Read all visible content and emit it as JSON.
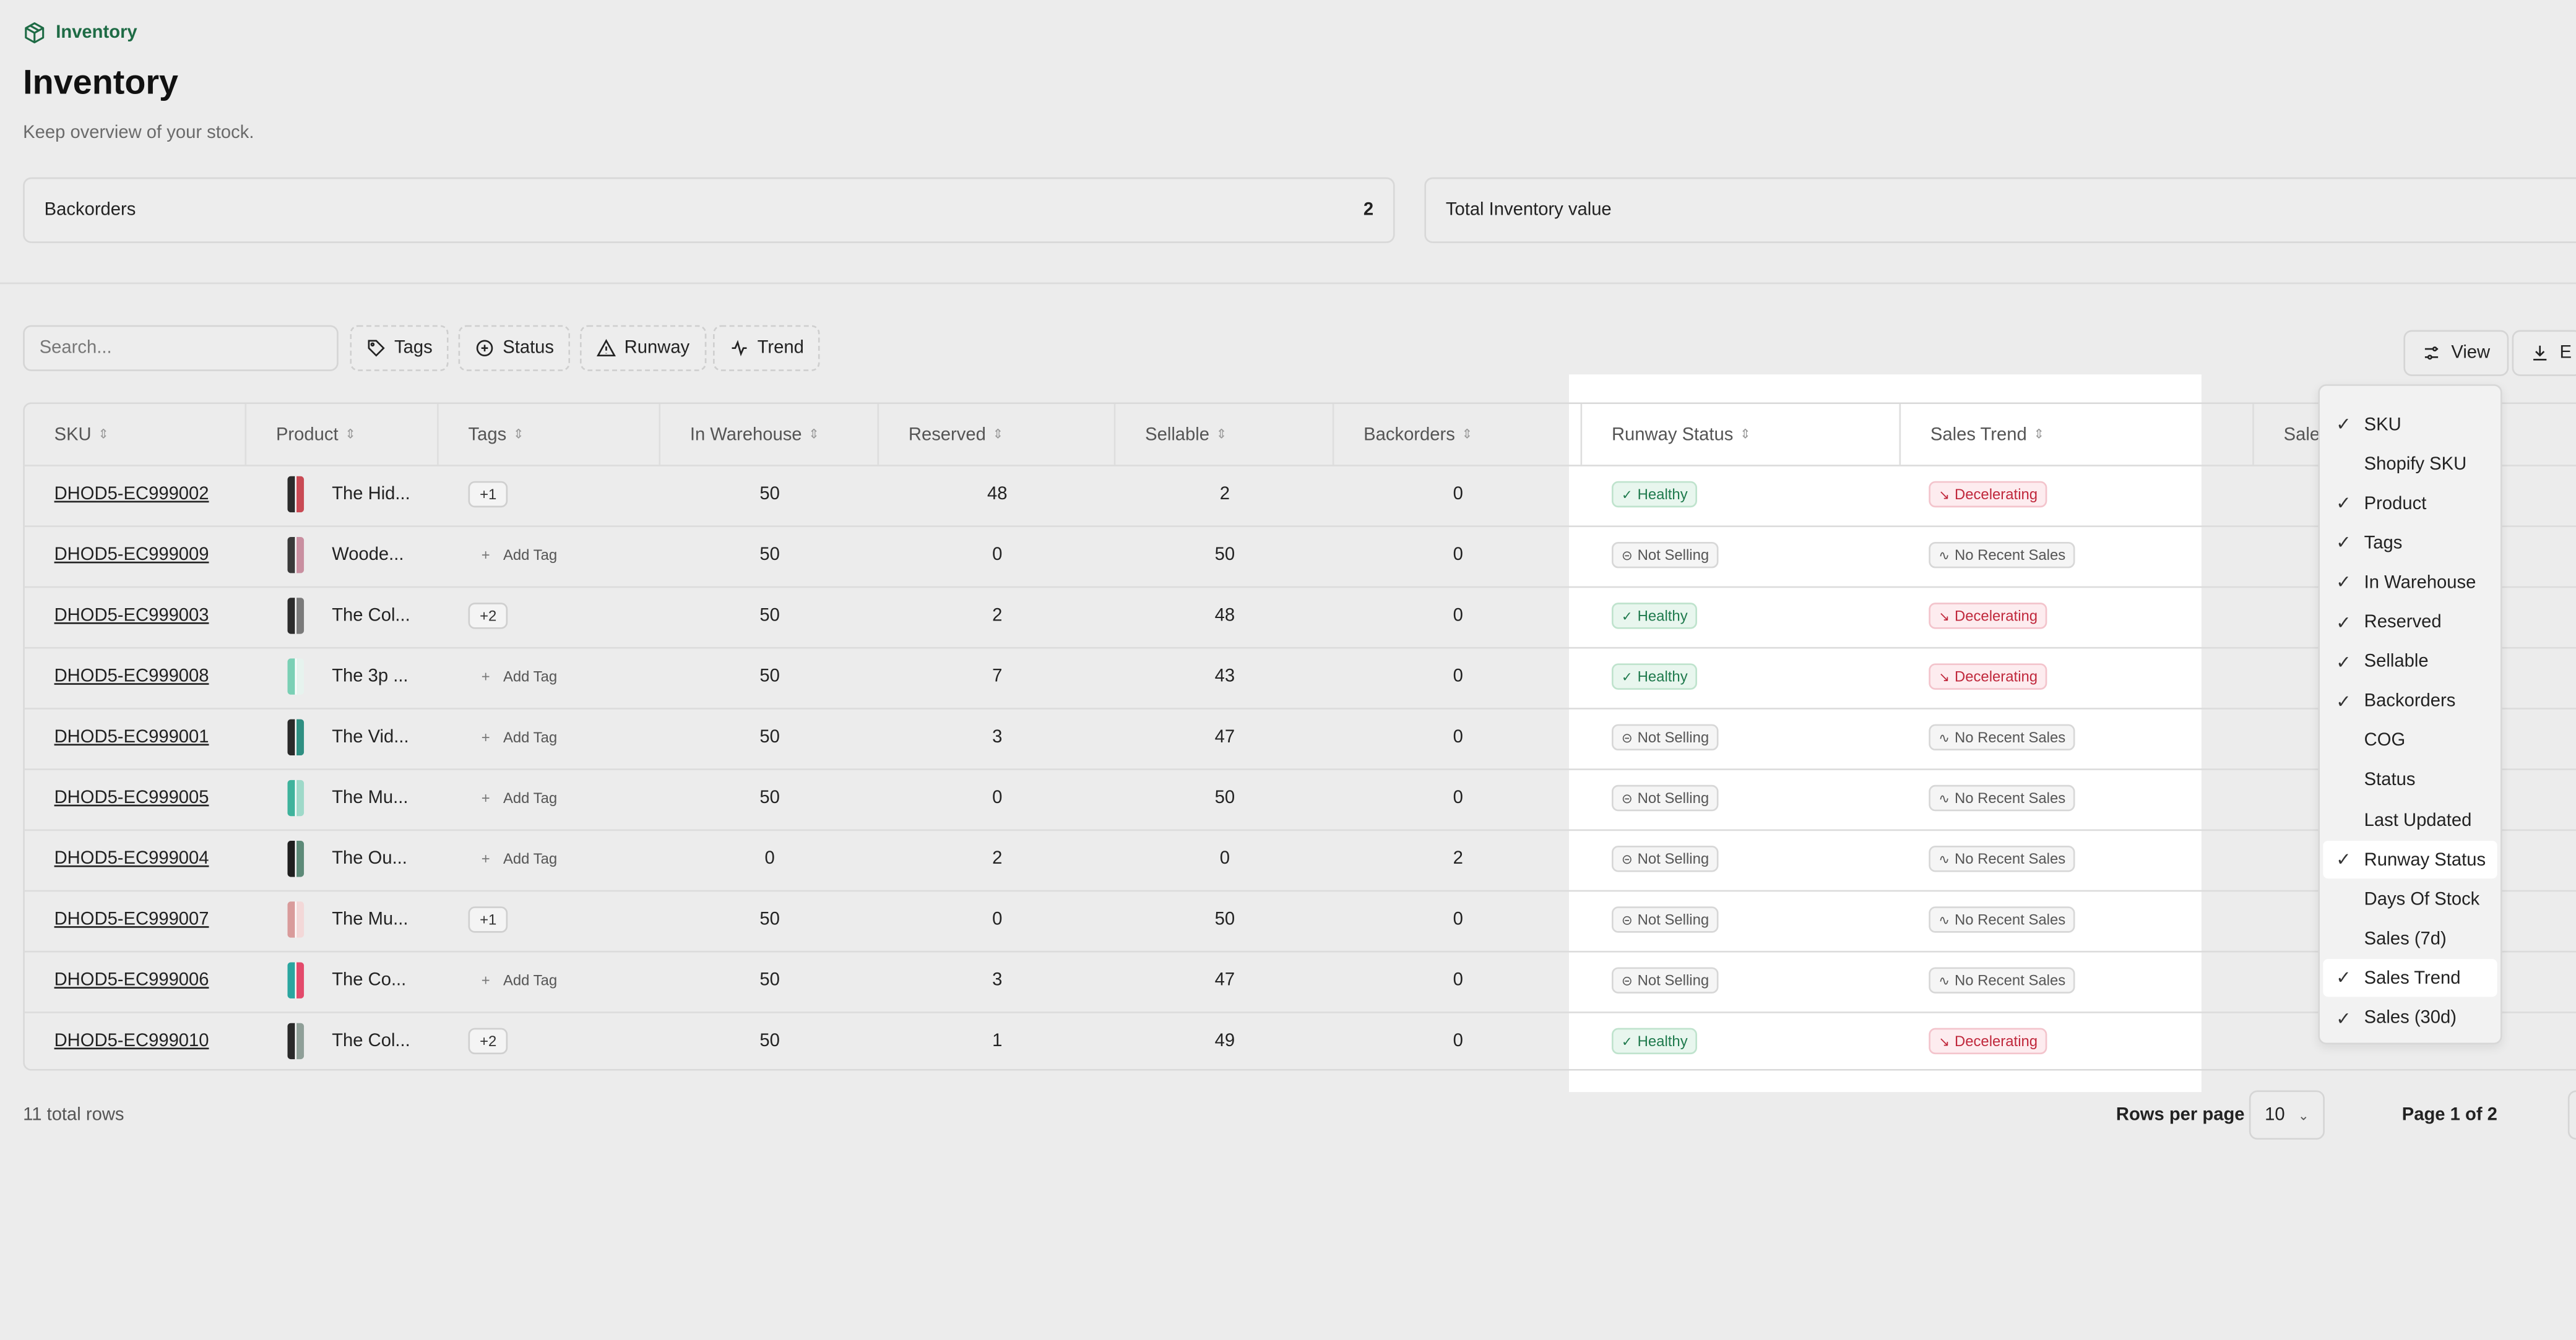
{
  "breadcrumb": {
    "label": "Inventory",
    "icon": "package-icon"
  },
  "page": {
    "title": "Inventory",
    "subtitle": "Keep overview of your stock."
  },
  "cards": [
    {
      "label": "Backorders",
      "value": "2"
    },
    {
      "label": "Total Inventory value",
      "value": ""
    }
  ],
  "toolbar": {
    "search_placeholder": "Search...",
    "filters": [
      "Tags",
      "Status",
      "Runway",
      "Trend"
    ],
    "view_label": "View",
    "export_label": "E"
  },
  "table": {
    "columns": [
      "SKU",
      "Product",
      "Tags",
      "In Warehouse",
      "Reserved",
      "Sellable",
      "Backorders",
      "Runway Status",
      "Sales Trend",
      "Sale"
    ],
    "add_tag_label": "Add Tag",
    "rows": [
      {
        "sku": "DHOD5-EC999002",
        "product": "The Hid...",
        "tag": "+1",
        "in_warehouse": "50",
        "reserved": "48",
        "sellable": "2",
        "backorders": "0",
        "runway": "Healthy",
        "trend": "Decelerating"
      },
      {
        "sku": "DHOD5-EC999009",
        "product": "Woode...",
        "tag": "",
        "in_warehouse": "50",
        "reserved": "0",
        "sellable": "50",
        "backorders": "0",
        "runway": "Not Selling",
        "trend": "No Recent Sales"
      },
      {
        "sku": "DHOD5-EC999003",
        "product": "The Col...",
        "tag": "+2",
        "in_warehouse": "50",
        "reserved": "2",
        "sellable": "48",
        "backorders": "0",
        "runway": "Healthy",
        "trend": "Decelerating"
      },
      {
        "sku": "DHOD5-EC999008",
        "product": "The 3p ...",
        "tag": "",
        "in_warehouse": "50",
        "reserved": "7",
        "sellable": "43",
        "backorders": "0",
        "runway": "Healthy",
        "trend": "Decelerating"
      },
      {
        "sku": "DHOD5-EC999001",
        "product": "The Vid...",
        "tag": "",
        "in_warehouse": "50",
        "reserved": "3",
        "sellable": "47",
        "backorders": "0",
        "runway": "Not Selling",
        "trend": "No Recent Sales"
      },
      {
        "sku": "DHOD5-EC999005",
        "product": "The Mu...",
        "tag": "",
        "in_warehouse": "50",
        "reserved": "0",
        "sellable": "50",
        "backorders": "0",
        "runway": "Not Selling",
        "trend": "No Recent Sales"
      },
      {
        "sku": "DHOD5-EC999004",
        "product": "The Ou...",
        "tag": "",
        "in_warehouse": "0",
        "reserved": "2",
        "sellable": "0",
        "backorders": "2",
        "runway": "Not Selling",
        "trend": "No Recent Sales"
      },
      {
        "sku": "DHOD5-EC999007",
        "product": "The Mu...",
        "tag": "+1",
        "in_warehouse": "50",
        "reserved": "0",
        "sellable": "50",
        "backorders": "0",
        "runway": "Not Selling",
        "trend": "No Recent Sales"
      },
      {
        "sku": "DHOD5-EC999006",
        "product": "The Co...",
        "tag": "",
        "in_warehouse": "50",
        "reserved": "3",
        "sellable": "47",
        "backorders": "0",
        "runway": "Not Selling",
        "trend": "No Recent Sales"
      },
      {
        "sku": "DHOD5-EC999010",
        "product": "The Col...",
        "tag": "+2",
        "in_warehouse": "50",
        "reserved": "1",
        "sellable": "49",
        "backorders": "0",
        "runway": "Healthy",
        "trend": "Decelerating"
      }
    ]
  },
  "footer": {
    "total_rows": "11 total rows",
    "rows_per_page_label": "Rows per page",
    "rows_per_page_value": "10",
    "page_info": "Page 1 of 2"
  },
  "view_menu": {
    "items": [
      {
        "label": "SKU",
        "checked": true,
        "highlighted": false
      },
      {
        "label": "Shopify SKU",
        "checked": false,
        "highlighted": false
      },
      {
        "label": "Product",
        "checked": true,
        "highlighted": false
      },
      {
        "label": "Tags",
        "checked": true,
        "highlighted": false
      },
      {
        "label": "In Warehouse",
        "checked": true,
        "highlighted": false
      },
      {
        "label": "Reserved",
        "checked": true,
        "highlighted": false
      },
      {
        "label": "Sellable",
        "checked": true,
        "highlighted": false
      },
      {
        "label": "Backorders",
        "checked": true,
        "highlighted": false
      },
      {
        "label": "COG",
        "checked": false,
        "highlighted": false
      },
      {
        "label": "Status",
        "checked": false,
        "highlighted": false
      },
      {
        "label": "Last Updated",
        "checked": false,
        "highlighted": false
      },
      {
        "label": "Runway Status",
        "checked": true,
        "highlighted": true
      },
      {
        "label": "Days Of Stock",
        "checked": false,
        "highlighted": false
      },
      {
        "label": "Sales (7d)",
        "checked": false,
        "highlighted": false
      },
      {
        "label": "Sales Trend",
        "checked": true,
        "highlighted": true
      },
      {
        "label": "Sales (30d)",
        "checked": true,
        "highlighted": false
      }
    ]
  },
  "colors": {
    "accent": "#1e6b45",
    "healthy": "#1f7a4d",
    "decelerating": "#c0283c"
  }
}
